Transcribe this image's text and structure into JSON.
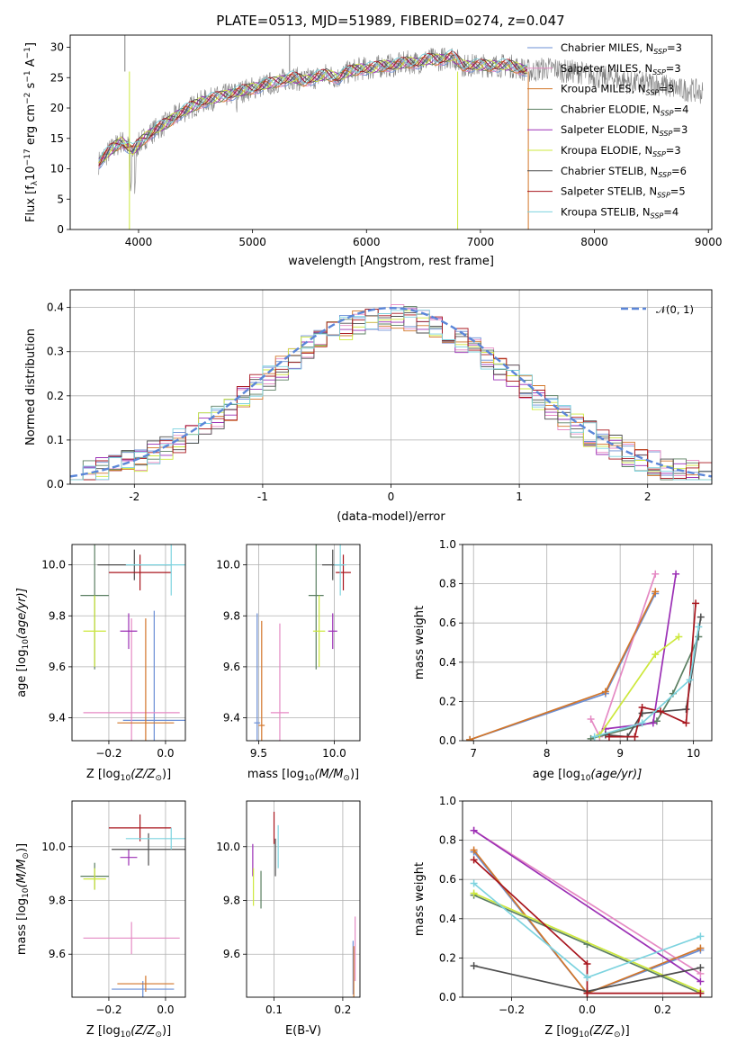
{
  "figure_title": "PLATE=0513, MJD=51989, FIBERID=0274, z=0.047",
  "colors": {
    "Chabrier MILES": "#6b8fd6",
    "Salpeter MILES": "#e58ac4",
    "Kroupa MILES": "#d2762a",
    "Chabrier ELODIE": "#5b7f62",
    "Salpeter ELODIE": "#9b2fb5",
    "Kroupa ELODIE": "#cde83c",
    "Chabrier STELIB": "#4d4d4d",
    "Salpeter STELIB": "#a8161e",
    "Kroupa STELIB": "#7dd3df"
  },
  "chart_data": [
    {
      "id": "spectrum",
      "type": "line",
      "title": "PLATE=0513, MJD=51989, FIBERID=0274, z=0.047",
      "xlabel": "wavelength [Angstrom, rest frame]",
      "ylabel_main": "Flux [f",
      "ylabel_sub1": "λ",
      "ylabel_mid": "10",
      "ylabel_sup1": "−17",
      "ylabel_mid2": " erg cm",
      "ylabel_sup2": "−2",
      "ylabel_mid3": " s",
      "ylabel_sup3": "−1",
      "ylabel_mid4": " A",
      "ylabel_sup4": "−1",
      "ylabel_end": "]",
      "xlim": [
        3400,
        9030
      ],
      "ylim": [
        0,
        32
      ],
      "xticks": [
        4000,
        5000,
        6000,
        7000,
        8000,
        9000
      ],
      "yticks": [
        0,
        5,
        10,
        15,
        20,
        25,
        30
      ],
      "grid": false,
      "legend_position": "top-right",
      "legend": [
        {
          "base": "Chabrier MILES, N",
          "sub": "SSP",
          "tail": "=3",
          "series": "Chabrier MILES"
        },
        {
          "base": "Salpeter MILES, N",
          "sub": "SSP",
          "tail": "=3",
          "series": "Salpeter MILES"
        },
        {
          "base": "Kroupa MILES, N",
          "sub": "SSP",
          "tail": "=3",
          "series": "Kroupa MILES"
        },
        {
          "base": "Chabrier ELODIE, N",
          "sub": "SSP",
          "tail": "=4",
          "series": "Chabrier ELODIE"
        },
        {
          "base": "Salpeter ELODIE, N",
          "sub": "SSP",
          "tail": "=3",
          "series": "Salpeter ELODIE"
        },
        {
          "base": "Kroupa ELODIE, N",
          "sub": "SSP",
          "tail": "=3",
          "series": "Kroupa ELODIE"
        },
        {
          "base": "Chabrier STELIB, N",
          "sub": "SSP",
          "tail": "=6",
          "series": "Chabrier STELIB"
        },
        {
          "base": "Salpeter STELIB, N",
          "sub": "SSP",
          "tail": "=5",
          "series": "Salpeter STELIB"
        },
        {
          "base": "Kroupa STELIB, N",
          "sub": "SSP",
          "tail": "=4",
          "series": "Kroupa STELIB"
        }
      ],
      "data_x": [
        3650,
        3750,
        3850,
        3950,
        4050,
        4150,
        4250,
        4350,
        4450,
        4550,
        4650,
        4750,
        4850,
        4950,
        5050,
        5150,
        5250,
        5350,
        5450,
        5550,
        5650,
        5750,
        5850,
        5950,
        6050,
        6150,
        6250,
        6350,
        6450,
        6550,
        6650,
        6750,
        6850,
        6950,
        7050,
        7150,
        7250,
        7350,
        7450,
        7550,
        7650,
        7750,
        7850,
        7950,
        8050,
        8150,
        8250,
        8350,
        8450,
        8550,
        8650,
        8750,
        8850,
        8950
      ],
      "data_y": [
        11,
        13,
        14.5,
        13,
        15,
        16.5,
        17.5,
        19,
        20,
        21,
        21.5,
        22,
        22.5,
        23,
        23.5,
        24,
        24.5,
        25,
        24.5,
        25,
        25.5,
        25,
        26,
        26.5,
        26.5,
        27,
        27,
        27.5,
        27.5,
        28,
        28,
        28.5,
        27,
        27,
        27,
        27,
        27,
        26.5,
        26,
        26.5,
        26.5,
        26,
        26,
        25.5,
        25,
        25,
        24.5,
        24,
        24,
        24,
        23.5,
        23,
        23,
        22.5
      ],
      "model_xmax": 7420
    },
    {
      "id": "residuals",
      "type": "histogram",
      "xlabel": "(data-model)/error",
      "ylabel": "Normed distribution",
      "xlim": [
        -2.5,
        2.5
      ],
      "ylim": [
        0,
        0.44
      ],
      "xticks": [
        -2,
        -1,
        0,
        1,
        2
      ],
      "yticks": [
        0.0,
        0.1,
        0.2,
        0.3,
        0.4
      ],
      "grid": true,
      "legend_position": "top-right",
      "legend_label": "𝒩(0, 1)",
      "bin_width": 0.1,
      "reference_curve": "gaussian mean 0 sigma 1"
    },
    {
      "id": "age-vs-Z",
      "type": "errorbar",
      "xlabel_main": "Z [log",
      "xlabel_sub": "10",
      "xlabel_end": "(Z/Z",
      "xlabel_sun": "⊙",
      "xlabel_close": ")]",
      "ylabel_main": "age  [log",
      "ylabel_sub": "10",
      "ylabel_end": "(age/yr)]",
      "xlim": [
        -0.33,
        0.07
      ],
      "ylim": [
        9.31,
        10.08
      ],
      "xticks": [
        -0.2,
        0.0
      ],
      "xticklabels": [
        "−0.2",
        "0.0"
      ],
      "yticks": [
        9.4,
        9.6,
        9.8,
        10.0
      ],
      "grid": true,
      "points": [
        {
          "series": "Chabrier MILES",
          "x": -0.04,
          "xerr": 0.11,
          "y": 9.39,
          "yerr": 0.43
        },
        {
          "series": "Salpeter MILES",
          "x": -0.12,
          "xerr": 0.17,
          "y": 9.42,
          "yerr": 0.37
        },
        {
          "series": "Kroupa MILES",
          "x": -0.07,
          "xerr": 0.1,
          "y": 9.38,
          "yerr": 0.41
        },
        {
          "series": "Chabrier ELODIE",
          "x": -0.25,
          "xerr": 0.05,
          "y": 9.88,
          "yerr": 0.29
        },
        {
          "series": "Salpeter ELODIE",
          "x": -0.13,
          "xerr": 0.03,
          "y": 9.74,
          "yerr": 0.07
        },
        {
          "series": "Kroupa ELODIE",
          "x": -0.25,
          "xerr": 0.04,
          "y": 9.74,
          "yerr": 0.14
        },
        {
          "series": "Chabrier STELIB",
          "x": -0.11,
          "xerr": 0.13,
          "y": 10.0,
          "yerr": 0.06
        },
        {
          "series": "Salpeter STELIB",
          "x": -0.09,
          "xerr": 0.11,
          "y": 9.97,
          "yerr": 0.07
        },
        {
          "series": "Kroupa STELIB",
          "x": 0.02,
          "xerr": 0.16,
          "y": 10.0,
          "yerr": 0.12
        }
      ]
    },
    {
      "id": "age-vs-mass",
      "type": "errorbar",
      "xlabel_main": "mass [log",
      "xlabel_sub": "10",
      "xlabel_end": "(M/M",
      "xlabel_sun": "⊙",
      "xlabel_close": ")]",
      "xlim": [
        9.42,
        10.17
      ],
      "ylim": [
        9.31,
        10.08
      ],
      "xticks": [
        9.5,
        10.0
      ],
      "yticks": [
        9.4,
        9.6,
        9.8,
        10.0
      ],
      "grid": true,
      "points": [
        {
          "series": "Chabrier MILES",
          "x": 9.49,
          "xerr": 0.02,
          "y": 9.38,
          "yerr": 0.43
        },
        {
          "series": "Salpeter MILES",
          "x": 9.64,
          "xerr": 0.06,
          "y": 9.42,
          "yerr": 0.35
        },
        {
          "series": "Kroupa MILES",
          "x": 9.52,
          "xerr": 0.02,
          "y": 9.37,
          "yerr": 0.41
        },
        {
          "series": "Chabrier ELODIE",
          "x": 9.88,
          "xerr": 0.05,
          "y": 9.88,
          "yerr": 0.29
        },
        {
          "series": "Salpeter ELODIE",
          "x": 9.99,
          "xerr": 0.03,
          "y": 9.74,
          "yerr": 0.07
        },
        {
          "series": "Kroupa ELODIE",
          "x": 9.9,
          "xerr": 0.04,
          "y": 9.74,
          "yerr": 0.14
        },
        {
          "series": "Chabrier STELIB",
          "x": 9.99,
          "xerr": 0.07,
          "y": 10.0,
          "yerr": 0.06
        },
        {
          "series": "Salpeter STELIB",
          "x": 10.06,
          "xerr": 0.05,
          "y": 9.97,
          "yerr": 0.07
        },
        {
          "series": "Kroupa STELIB",
          "x": 10.04,
          "xerr": 0.04,
          "y": 10.0,
          "yerr": 0.12
        }
      ]
    },
    {
      "id": "weight-vs-age",
      "type": "line",
      "xlabel_main": "age  [log",
      "xlabel_sub": "10",
      "xlabel_end": "(age/yr)]",
      "ylabel": "mass weight",
      "xlim": [
        6.85,
        10.25
      ],
      "ylim": [
        0,
        1.0
      ],
      "xticks": [
        7,
        8,
        9,
        10
      ],
      "yticks": [
        0.0,
        0.2,
        0.4,
        0.6,
        0.8,
        1.0
      ],
      "grid": true,
      "series": [
        {
          "name": "Chabrier MILES",
          "x": [
            6.95,
            8.8,
            9.48
          ],
          "y": [
            0.005,
            0.24,
            0.75
          ]
        },
        {
          "name": "Salpeter MILES",
          "x": [
            8.6,
            8.72,
            9.48
          ],
          "y": [
            0.11,
            0.02,
            0.85
          ]
        },
        {
          "name": "Kroupa MILES",
          "x": [
            6.95,
            8.8,
            9.48
          ],
          "y": [
            0.005,
            0.25,
            0.76
          ]
        },
        {
          "name": "Chabrier ELODIE",
          "x": [
            8.6,
            9.5,
            9.72,
            10.07
          ],
          "y": [
            0.01,
            0.1,
            0.24,
            0.53
          ]
        },
        {
          "name": "Salpeter ELODIE",
          "x": [
            8.8,
            9.45,
            9.76
          ],
          "y": [
            0.06,
            0.09,
            0.85
          ]
        },
        {
          "name": "Kroupa ELODIE",
          "x": [
            8.72,
            9.48,
            9.8
          ],
          "y": [
            0.03,
            0.44,
            0.53
          ]
        },
        {
          "name": "Chabrier STELIB",
          "x": [
            8.8,
            9.1,
            9.3,
            9.9,
            10.1
          ],
          "y": [
            0.03,
            0.02,
            0.14,
            0.16,
            0.63
          ]
        },
        {
          "name": "Salpeter STELIB",
          "x": [
            8.85,
            9.2,
            9.3,
            9.55,
            9.9,
            10.03
          ],
          "y": [
            0.02,
            0.02,
            0.17,
            0.15,
            0.09,
            0.7
          ]
        },
        {
          "name": "Kroupa STELIB",
          "x": [
            8.65,
            9.3,
            9.95,
            10.07
          ],
          "y": [
            0.02,
            0.09,
            0.31,
            0.58
          ]
        }
      ]
    },
    {
      "id": "mass-vs-Z",
      "type": "errorbar",
      "xlabel_main": "Z [log",
      "xlabel_sub": "10",
      "xlabel_end": "(Z/Z",
      "xlabel_sun": "⊙",
      "xlabel_close": ")]",
      "ylabel_main": "mass [log",
      "ylabel_sub": "10",
      "ylabel_end": "(M/M",
      "ylabel_sun": "⊙",
      "ylabel_close": ")]",
      "xlim": [
        -0.33,
        0.07
      ],
      "ylim": [
        9.44,
        10.17
      ],
      "xticks": [
        -0.2,
        0.0
      ],
      "xticklabels": [
        "−0.2",
        "0.0"
      ],
      "yticks": [
        9.6,
        9.8,
        10.0
      ],
      "grid": true,
      "points": [
        {
          "series": "Chabrier MILES",
          "x": -0.08,
          "xerr": 0.11,
          "y": 9.47,
          "yerr": 0.03
        },
        {
          "series": "Salpeter MILES",
          "x": -0.12,
          "xerr": 0.17,
          "y": 9.66,
          "yerr": 0.06
        },
        {
          "series": "Kroupa MILES",
          "x": -0.07,
          "xerr": 0.1,
          "y": 9.49,
          "yerr": 0.03
        },
        {
          "series": "Chabrier ELODIE",
          "x": -0.25,
          "xerr": 0.05,
          "y": 9.89,
          "yerr": 0.05
        },
        {
          "series": "Salpeter ELODIE",
          "x": -0.13,
          "xerr": 0.03,
          "y": 9.96,
          "yerr": 0.03
        },
        {
          "series": "Kroupa ELODIE",
          "x": -0.25,
          "xerr": 0.04,
          "y": 9.88,
          "yerr": 0.04
        },
        {
          "series": "Chabrier STELIB",
          "x": -0.06,
          "xerr": 0.13,
          "y": 9.99,
          "yerr": 0.06
        },
        {
          "series": "Salpeter STELIB",
          "x": -0.09,
          "xerr": 0.11,
          "y": 10.07,
          "yerr": 0.05
        },
        {
          "series": "Kroupa STELIB",
          "x": 0.02,
          "xerr": 0.16,
          "y": 10.03,
          "yerr": 0.04
        }
      ]
    },
    {
      "id": "mass-vs-EBV",
      "type": "errorbar",
      "xlabel": "E(B-V)",
      "xlim": [
        0.06,
        0.225
      ],
      "ylim": [
        9.44,
        10.17
      ],
      "xticks": [
        0.1,
        0.2
      ],
      "yticks": [
        9.6,
        9.8,
        10.0
      ],
      "grid": true,
      "points": [
        {
          "series": "Chabrier MILES",
          "x": 0.215,
          "xerr": 0.0,
          "y": 9.55,
          "yerr": 0.1
        },
        {
          "series": "Salpeter MILES",
          "x": 0.218,
          "xerr": 0.0,
          "y": 9.62,
          "yerr": 0.12
        },
        {
          "series": "Kroupa MILES",
          "x": 0.216,
          "xerr": 0.0,
          "y": 9.53,
          "yerr": 0.1
        },
        {
          "series": "Chabrier ELODIE",
          "x": 0.081,
          "xerr": 0.0,
          "y": 9.84,
          "yerr": 0.07
        },
        {
          "series": "Salpeter ELODIE",
          "x": 0.069,
          "xerr": 0.0,
          "y": 9.95,
          "yerr": 0.06
        },
        {
          "series": "Kroupa ELODIE",
          "x": 0.07,
          "xerr": 0.0,
          "y": 9.85,
          "yerr": 0.07
        },
        {
          "series": "Chabrier STELIB",
          "x": 0.102,
          "xerr": 0.0,
          "y": 9.96,
          "yerr": 0.07
        },
        {
          "series": "Salpeter STELIB",
          "x": 0.1,
          "xerr": 0.0,
          "y": 10.07,
          "yerr": 0.06
        },
        {
          "series": "Kroupa STELIB",
          "x": 0.106,
          "xerr": 0.0,
          "y": 10.0,
          "yerr": 0.08
        }
      ]
    },
    {
      "id": "weight-vs-Z",
      "type": "line",
      "xlabel_main": "Z [log",
      "xlabel_sub": "10",
      "xlabel_end": "(Z/Z",
      "xlabel_sun": "⊙",
      "xlabel_close": ")]",
      "ylabel": "mass weight",
      "xlim": [
        -0.33,
        0.33
      ],
      "ylim": [
        0,
        1.0
      ],
      "xticks": [
        -0.2,
        0.0,
        0.2
      ],
      "xticklabels": [
        "−0.2",
        "0.0",
        "0.2"
      ],
      "yticks": [
        0.0,
        0.2,
        0.4,
        0.6,
        0.8,
        1.0
      ],
      "grid": true,
      "series": [
        {
          "name": "Chabrier MILES",
          "x": [
            -0.3,
            0.0,
            0.3
          ],
          "y": [
            0.74,
            0.02,
            0.24
          ]
        },
        {
          "name": "Salpeter MILES",
          "x": [
            -0.3,
            0.3
          ],
          "y": [
            0.85,
            0.12
          ]
        },
        {
          "name": "Kroupa MILES",
          "x": [
            -0.3,
            0.0,
            0.3
          ],
          "y": [
            0.75,
            0.02,
            0.25
          ]
        },
        {
          "name": "Chabrier ELODIE",
          "x": [
            -0.3,
            0.0,
            0.3
          ],
          "y": [
            0.52,
            0.27,
            0.02
          ]
        },
        {
          "name": "Salpeter ELODIE",
          "x": [
            -0.3,
            0.3
          ],
          "y": [
            0.85,
            0.08
          ]
        },
        {
          "name": "Kroupa ELODIE",
          "x": [
            -0.3,
            0.3
          ],
          "y": [
            0.53,
            0.03
          ]
        },
        {
          "name": "Chabrier STELIB",
          "x": [
            -0.3,
            0.0,
            0.3
          ],
          "y": [
            0.16,
            0.03,
            0.15
          ]
        },
        {
          "name": "Salpeter STELIB",
          "x": [
            -0.3,
            0.0,
            0.0,
            0.3
          ],
          "y": [
            0.7,
            0.17,
            0.02,
            0.02
          ]
        },
        {
          "name": "Kroupa STELIB",
          "x": [
            -0.3,
            0.0,
            0.3
          ],
          "y": [
            0.58,
            0.1,
            0.31
          ]
        }
      ]
    }
  ]
}
